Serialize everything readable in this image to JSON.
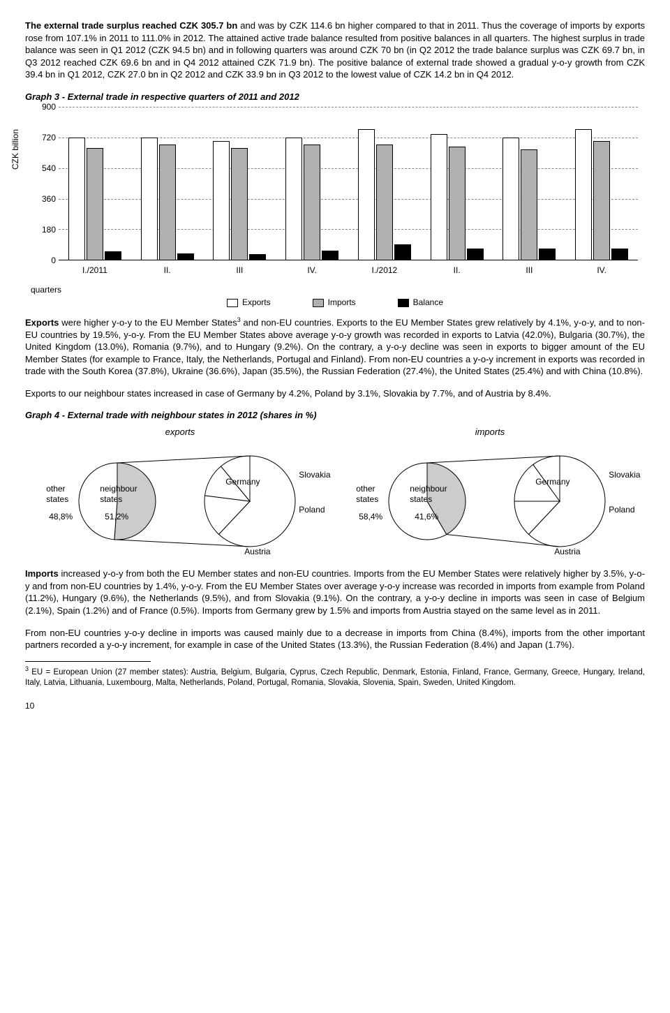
{
  "paragraphs": {
    "p1": "The external trade surplus reached CZK 305.7 bn and was by CZK 114.6 bn higher compared to that in 2011. Thus the coverage of imports by exports rose from 107.1% in 2011 to 111.0% in 2012. The attained active trade balance resulted from positive balances in all quarters. The highest surplus in trade balance was seen in Q1 2012 (CZK 94.5 bn) and in following quarters was around CZK 70 bn (in Q2 2012 the trade balance surplus was CZK 69.7 bn, in Q3 2012 reached CZK 69.6 bn and in Q4 2012 attained CZK 71.9 bn). The positive balance of external trade showed a gradual y-o-y growth from CZK 39.4 bn in Q1 2012, CZK 27.0 bn in Q2 2012 and CZK 33.9 bn in Q3 2012 to the lowest value of CZK 14.2 bn in Q4 2012.",
    "p1_bold": "The external trade surplus reached CZK 305.7 bn",
    "graph3_title": "Graph 3 - External trade in respective quarters of 2011 and 2012",
    "p2a": "Exports",
    "p2": " were higher y-o-y to the EU Member States",
    "p2b": " and non-EU countries. Exports to the EU Member States grew relatively by 4.1%, y-o-y, and to non-EU countries by 19.5%, y-o-y. From the EU Member States above average y-o-y growth was recorded in exports to Latvia (42.0%), Bulgaria (30.7%), the United Kingdom (13.0%), Romania (9.7%), and to Hungary (9.2%). On the contrary, a y-o-y decline was seen in exports to bigger amount of the EU Member States (for example to France, Italy, the Netherlands, Portugal and Finland). From non-EU countries a y-o-y increment in exports was recorded in trade with the South Korea (37.8%), Ukraine (36.6%), Japan (35.5%), the Russian Federation (27.4%), the United States (25.4%) and with China (10.8%).",
    "p3": "Exports to our neighbour states increased in case of Germany by 4.2%, Poland by 3.1%, Slovakia by 7.7%, and of Austria by 8.4%.",
    "graph4_title": "Graph 4 - External trade with neighbour states in 2012 (shares in %)",
    "p4a": "Imports",
    "p4": " increased y-o-y from both the EU Member states and non-EU countries. Imports from the EU Member States were relatively higher by 3.5%, y-o-y and from non-EU countries by 1.4%, y-o-y. From the EU Member States over average y-o-y increase was recorded in imports from example from Poland (11.2%), Hungary (9.6%), the Netherlands (9.5%), and from Slovakia (9.1%). On the contrary, a y-o-y decline in imports was seen in case of Belgium (2.1%), Spain (1.2%) and of France (0.5%). Imports from Germany grew by 1.5% and imports from Austria stayed on the same level as in 2011.",
    "p5": "From non-EU countries y-o-y decline in imports was caused mainly due to a decrease in imports from China (8.4%), imports from the other important partners  recorded a y-o-y increment, for example in case of the United States (13.3%), the Russian Federation (8.4%) and Japan (1.7%).",
    "footnote": " EU = European Union (27 member states): Austria, Belgium, Bulgaria, Cyprus, Czech Republic, Denmark, Estonia, Finland, France, Germany, Greece, Hungary, Ireland, Italy, Latvia, Lithuania, Luxembourg, Malta, Netherlands, Poland, Portugal, Romania, Slovakia, Slovenia, Spain, Sweden, United Kingdom.",
    "footnote_num": "3",
    "sup3": "3",
    "page": "10"
  },
  "bar_chart": {
    "y_label": "CZK billion",
    "y_max": 900,
    "y_ticks": [
      0,
      180,
      360,
      540,
      720,
      900
    ],
    "categories": [
      "I./2011",
      "II.",
      "III",
      "IV.",
      "I./2012",
      "II.",
      "III",
      "IV."
    ],
    "series": {
      "exports": [
        720,
        720,
        700,
        720,
        770,
        740,
        720,
        770
      ],
      "imports": [
        660,
        680,
        660,
        680,
        680,
        670,
        650,
        700
      ],
      "balance": [
        55,
        43,
        36,
        58,
        95,
        70,
        70,
        72
      ]
    },
    "legend": {
      "exports": "Exports",
      "imports": "Imports",
      "balance": "Balance"
    },
    "quarters_label": "quarters",
    "colors": {
      "exports": "#ffffff",
      "imports": "#b0b0b0",
      "balance": "#000000",
      "grid": "#888888"
    }
  },
  "pies": {
    "exports": {
      "title": "exports",
      "main": {
        "other": 48.8,
        "neighbour": 51.2
      },
      "main_labels": {
        "other": "other\nstates",
        "neighbour": "neighbour\nstates",
        "other_pct": "48,8%",
        "neighbour_pct": "51,2%"
      },
      "detail_labels": [
        "Germany",
        "Slovakia",
        "Poland",
        "Austria"
      ],
      "detail_shares": [
        62,
        15,
        12,
        11
      ]
    },
    "imports": {
      "title": "imports",
      "main": {
        "other": 58.4,
        "neighbour": 41.6
      },
      "main_labels": {
        "other": "other\nstates",
        "neighbour": "neighbour\nstates",
        "other_pct": "58,4%",
        "neighbour_pct": "41,6%"
      },
      "detail_labels": [
        "Germany",
        "Slovakia",
        "Poland",
        "Austria"
      ],
      "detail_shares": [
        62,
        13,
        15,
        10
      ]
    },
    "colors": {
      "other": "#ffffff",
      "neighbour": "#cccccc",
      "stroke": "#000000"
    }
  }
}
